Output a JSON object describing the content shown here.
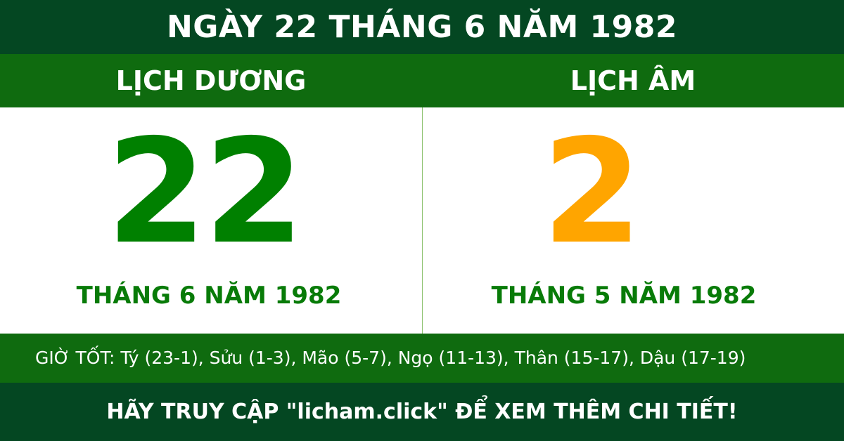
{
  "title": "NGÀY 22 THÁNG 6 NĂM 1982",
  "solar": {
    "heading": "LỊCH DƯƠNG",
    "day": "22",
    "month_year": "THÁNG 6 NĂM 1982"
  },
  "lunar": {
    "heading": "LỊCH ÂM",
    "day": "2",
    "month_year": "THÁNG 5 NĂM 1982"
  },
  "good_hours": "GIỜ TỐT: Tý (23-1), Sửu (1-3), Mão (5-7), Ngọ (11-13), Thân (15-17), Dậu (17-19)",
  "footer": "HÃY TRUY CẬP \"licham.click\" ĐỂ XEM THÊM CHI TIẾT!",
  "colors": {
    "dark_green": "#044722",
    "green": "#0f6b0f",
    "solar_day": "#008000",
    "lunar_day": "#FFA500"
  }
}
